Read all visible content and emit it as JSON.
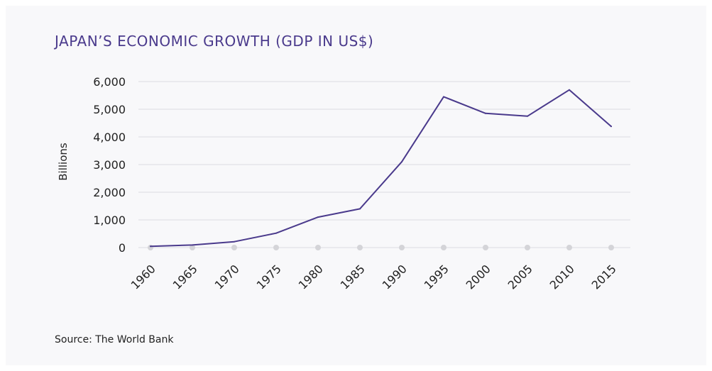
{
  "chart_data": {
    "type": "line",
    "title": "JAPAN’S ECONOMIC GROWTH (GDP IN US$)",
    "ylabel": "Billions",
    "xlabel": "",
    "x": [
      "1960",
      "1965",
      "1970",
      "1975",
      "1980",
      "1985",
      "1990",
      "1995",
      "2000",
      "2005",
      "2010",
      "2015"
    ],
    "series": [
      {
        "values": [
          45,
          92,
          212,
          520,
          1100,
          1400,
          3100,
          5450,
          4850,
          4750,
          5700,
          4380
        ]
      }
    ],
    "yticks": [
      "0",
      "1,000",
      "2,000",
      "3,000",
      "4,000",
      "5,000",
      "6,000"
    ],
    "ylim": [
      0,
      6000
    ],
    "grid": true,
    "line_color": "#4a3a8c",
    "grid_color": "#dddde3",
    "marker_color": "#d4d4d8"
  },
  "source": "Source: The World Bank"
}
